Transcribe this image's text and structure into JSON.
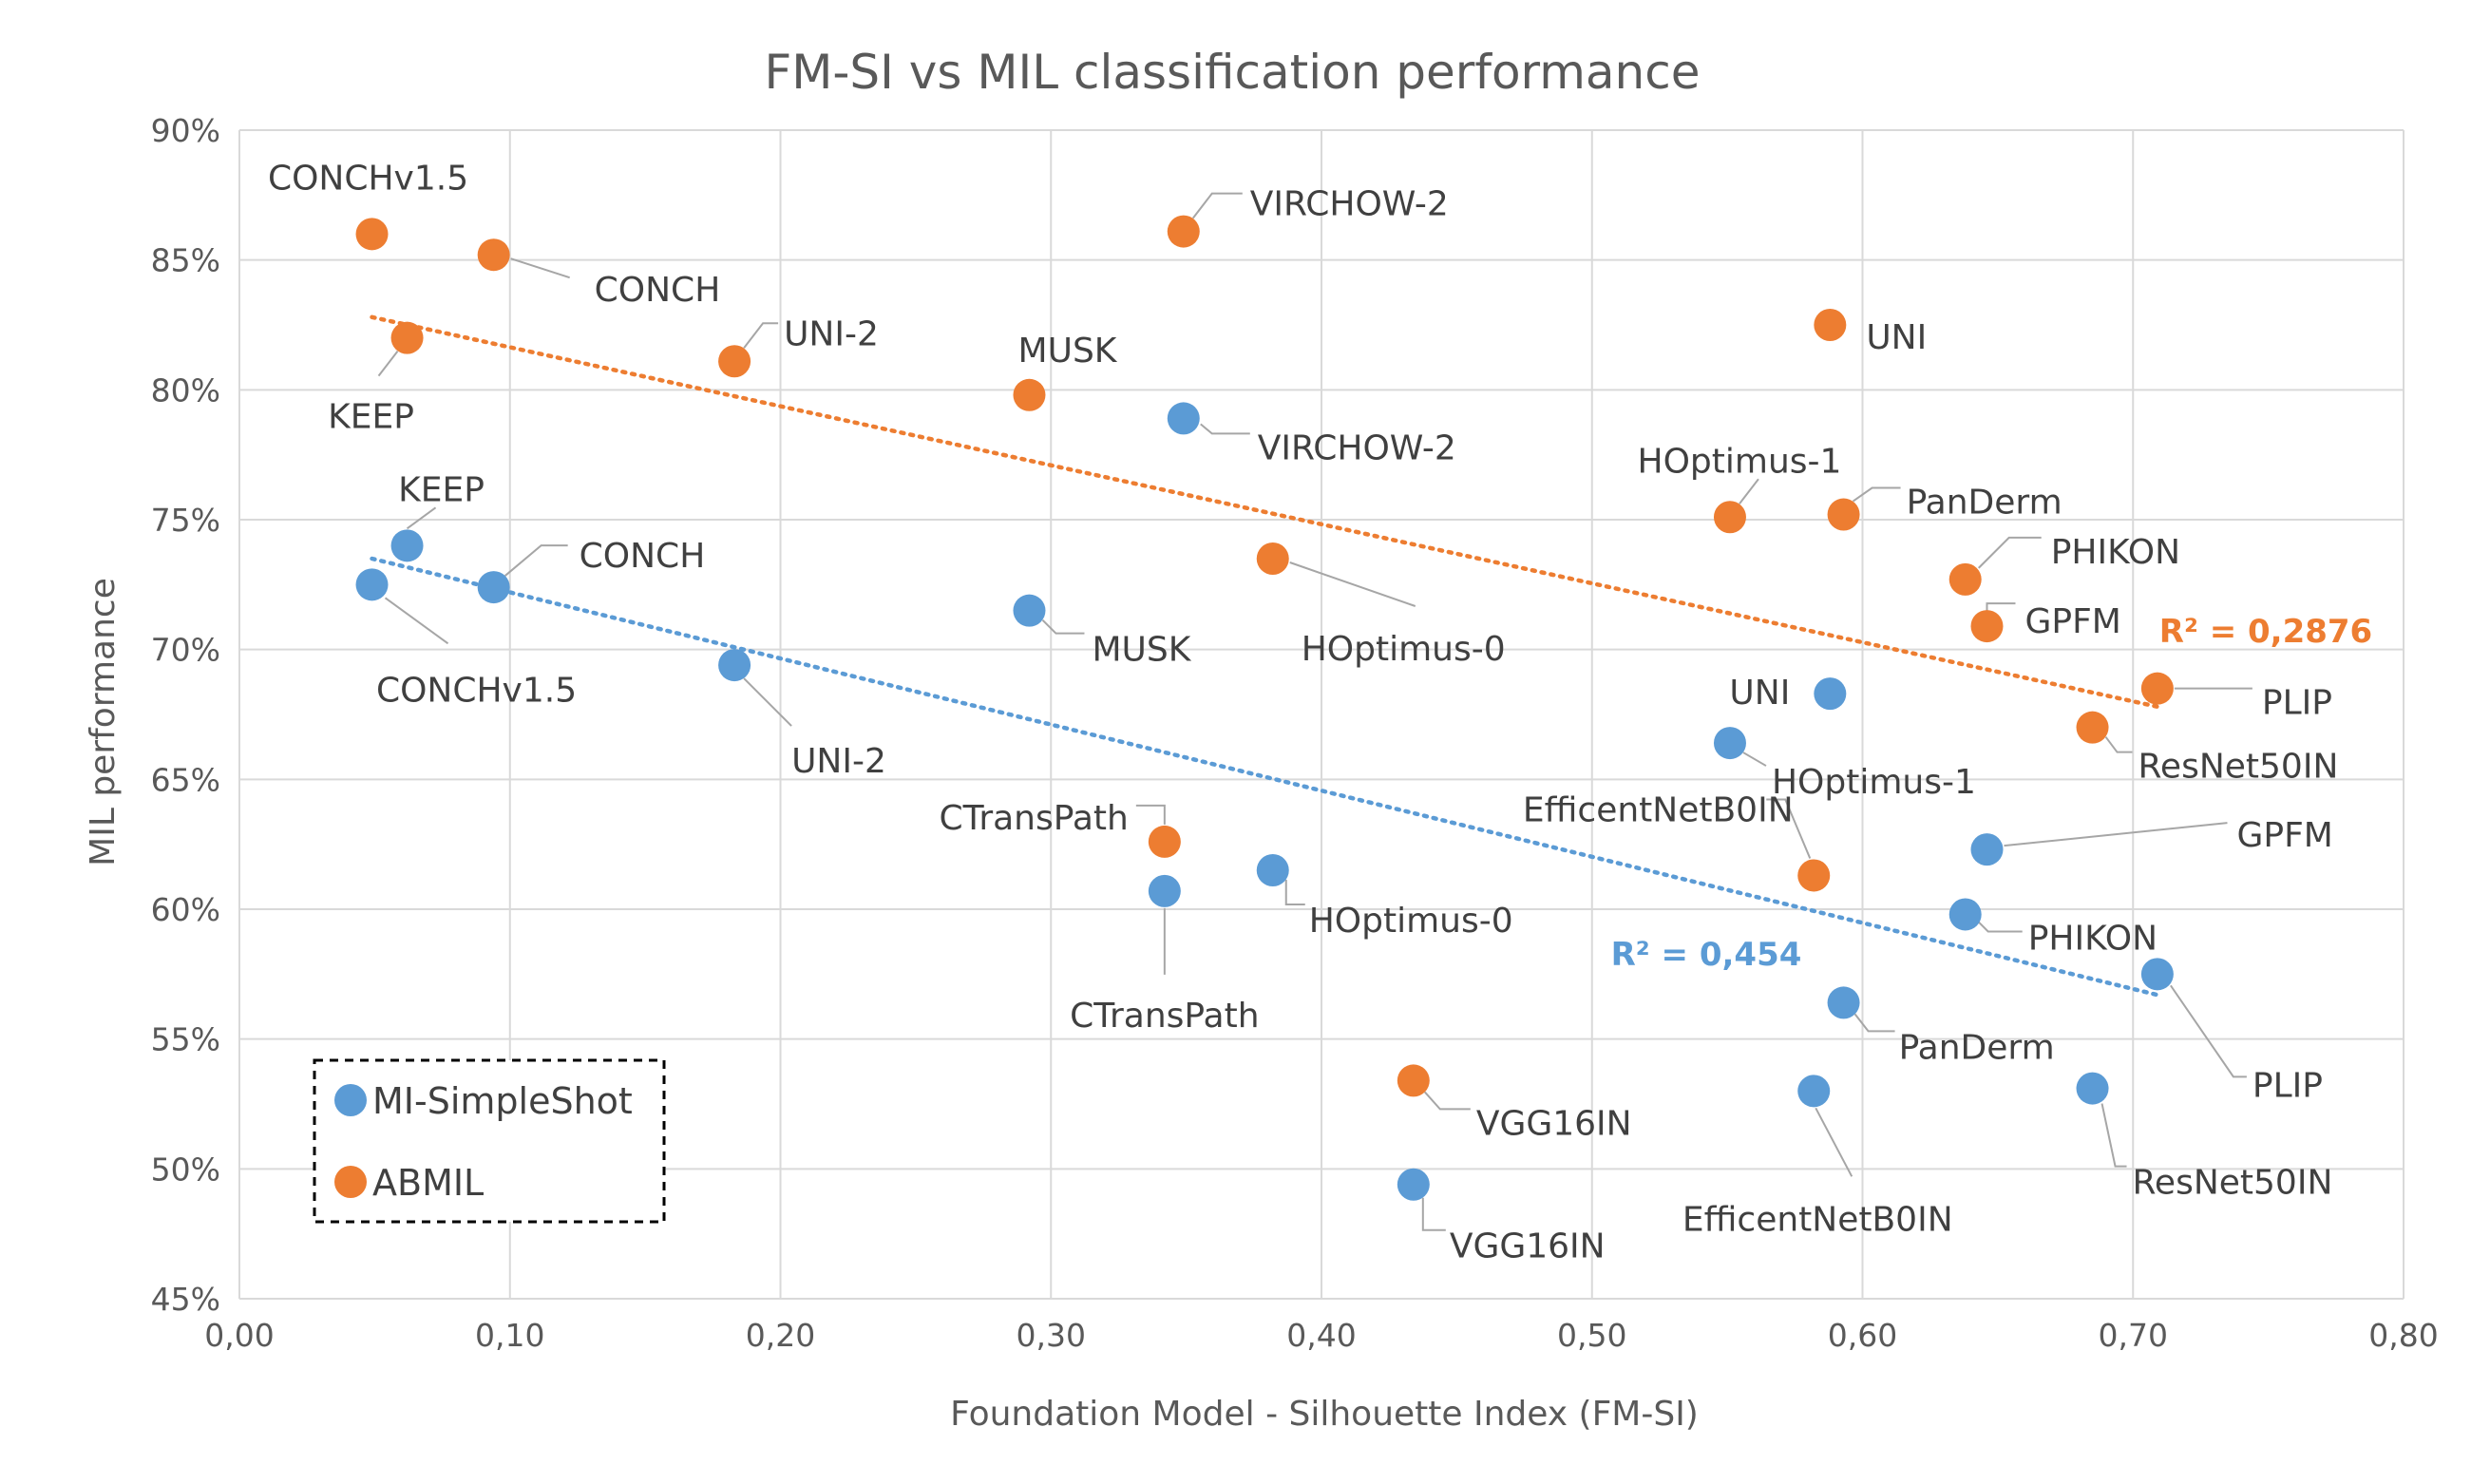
{
  "chart_data": {
    "type": "scatter",
    "title": "FM-SI vs MIL classification performance",
    "xlabel": "Foundation Model - Silhouette Index (FM-SI)",
    "ylabel": "MIL performance",
    "xlim": [
      0,
      0.8
    ],
    "ylim": [
      45,
      90
    ],
    "x_ticks": [
      "0,00",
      "0,10",
      "0,20",
      "0,30",
      "0,40",
      "0,50",
      "0,60",
      "0,70",
      "0,80"
    ],
    "y_ticks": [
      "45%",
      "50%",
      "55%",
      "60%",
      "65%",
      "70%",
      "75%",
      "80%",
      "85%",
      "90%"
    ],
    "grid": true,
    "legend_position": "bottom-left",
    "series": [
      {
        "name": "MI-SimpleShot",
        "color": "#5B9BD5",
        "r2_label": "R² = 0,454",
        "trendline": {
          "x0": 0.049,
          "y0": 73.5,
          "x1": 0.709,
          "y1": 56.7
        },
        "points": [
          {
            "label": "KEEP",
            "x": 0.062,
            "y": 74.0
          },
          {
            "label": "CONCHv1.5",
            "x": 0.049,
            "y": 72.5
          },
          {
            "label": "CONCH",
            "x": 0.094,
            "y": 72.4
          },
          {
            "label": "UNI-2",
            "x": 0.183,
            "y": 69.4
          },
          {
            "label": "MUSK",
            "x": 0.292,
            "y": 71.5
          },
          {
            "label": "VIRCHOW-2",
            "x": 0.349,
            "y": 78.9
          },
          {
            "label": "CTransPath",
            "x": 0.342,
            "y": 60.7
          },
          {
            "label": "HOptimus-0",
            "x": 0.382,
            "y": 61.5
          },
          {
            "label": "VGG16IN",
            "x": 0.434,
            "y": 49.4
          },
          {
            "label": "UNI",
            "x": 0.588,
            "y": 68.3
          },
          {
            "label": "HOptimus-1",
            "x": 0.551,
            "y": 66.4
          },
          {
            "label": "EfficentNetB0IN",
            "x": 0.582,
            "y": 53.0
          },
          {
            "label": "PanDerm",
            "x": 0.593,
            "y": 56.4
          },
          {
            "label": "PHIKON",
            "x": 0.638,
            "y": 59.8
          },
          {
            "label": "GPFM",
            "x": 0.646,
            "y": 62.3
          },
          {
            "label": "ResNet50IN",
            "x": 0.685,
            "y": 53.1
          },
          {
            "label": "PLIP",
            "x": 0.709,
            "y": 57.5
          }
        ]
      },
      {
        "name": "ABMIL",
        "color": "#ED7D31",
        "r2_label": "R² = 0,2876",
        "trendline": {
          "x0": 0.049,
          "y0": 82.8,
          "x1": 0.709,
          "y1": 67.8
        },
        "points": [
          {
            "label": "CONCHv1.5",
            "x": 0.049,
            "y": 86.0
          },
          {
            "label": "CONCH",
            "x": 0.094,
            "y": 85.2
          },
          {
            "label": "KEEP",
            "x": 0.062,
            "y": 82.0
          },
          {
            "label": "UNI-2",
            "x": 0.183,
            "y": 81.1
          },
          {
            "label": "MUSK",
            "x": 0.292,
            "y": 79.8
          },
          {
            "label": "VIRCHOW-2",
            "x": 0.349,
            "y": 86.1
          },
          {
            "label": "HOptimus-0",
            "x": 0.382,
            "y": 73.5
          },
          {
            "label": "CTransPath",
            "x": 0.342,
            "y": 62.6
          },
          {
            "label": "VGG16IN",
            "x": 0.434,
            "y": 53.4
          },
          {
            "label": "UNI",
            "x": 0.588,
            "y": 82.5
          },
          {
            "label": "HOptimus-1",
            "x": 0.551,
            "y": 75.1
          },
          {
            "label": "PanDerm",
            "x": 0.593,
            "y": 75.2
          },
          {
            "label": "PHIKON",
            "x": 0.638,
            "y": 72.7
          },
          {
            "label": "GPFM",
            "x": 0.646,
            "y": 70.9
          },
          {
            "label": "EfficentNetB0IN",
            "x": 0.582,
            "y": 61.3
          },
          {
            "label": "PLIP",
            "x": 0.709,
            "y": 68.5
          },
          {
            "label": "ResNet50IN",
            "x": 0.685,
            "y": 67.0
          }
        ]
      }
    ]
  }
}
